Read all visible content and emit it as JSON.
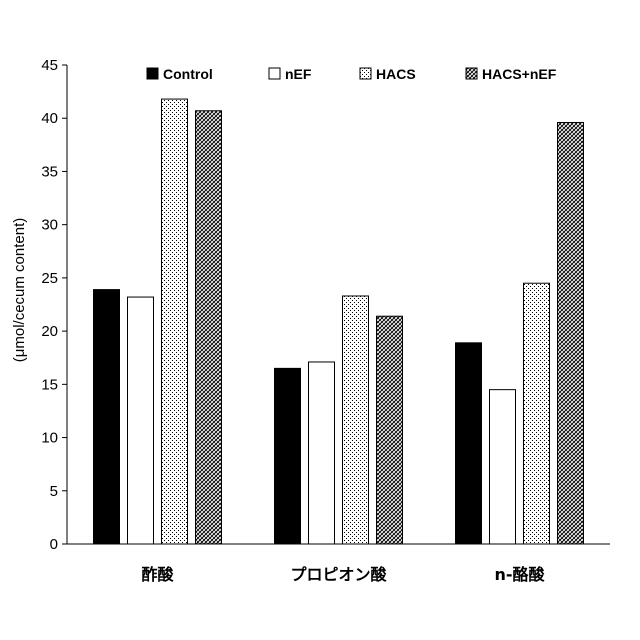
{
  "chart_data": {
    "type": "bar",
    "title": "",
    "xlabel": "",
    "ylabel": "(μmol/cecum content)",
    "ylim": [
      0,
      45
    ],
    "ytick_step": 5,
    "grid": false,
    "legend_position": "top",
    "categories": [
      "酢酸",
      "プロピオン酸",
      "n-酪酸"
    ],
    "series": [
      {
        "name": "Control",
        "values": [
          23.9,
          16.5,
          18.9
        ],
        "fill": "solid-black"
      },
      {
        "name": "nEF",
        "values": [
          23.2,
          17.1,
          14.5
        ],
        "fill": "white"
      },
      {
        "name": "HACS",
        "values": [
          41.8,
          23.3,
          24.5
        ],
        "fill": "dotted"
      },
      {
        "name": "HACS+nEF",
        "values": [
          40.7,
          21.4,
          39.6
        ],
        "fill": "hatched"
      }
    ]
  }
}
